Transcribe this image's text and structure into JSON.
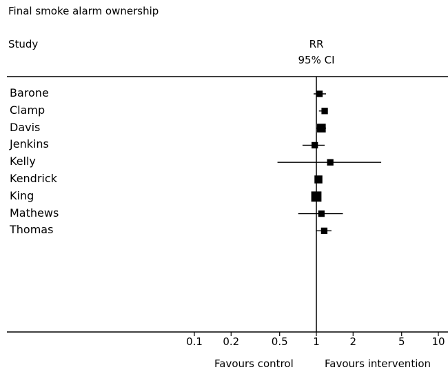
{
  "chart_data": {
    "type": "forest",
    "title": "Final smoke alarm ownership",
    "column_headers": {
      "study": "Study",
      "effect": "RR",
      "ci": "95% CI"
    },
    "x_scale": "log",
    "x_ticks": [
      0.1,
      0.2,
      0.5,
      1,
      2,
      5,
      10
    ],
    "x_tick_labels": [
      "0.1",
      "0.2",
      "0.5",
      "1",
      "2",
      "5",
      "10"
    ],
    "xlim": [
      0.1,
      10
    ],
    "reference_line": 1,
    "favours_left": "Favours control",
    "favours_right": "Favours intervention",
    "studies": [
      {
        "name": "Barone",
        "rr": 1.06,
        "lower": 0.95,
        "upper": 1.2,
        "weight": 3
      },
      {
        "name": "Clamp",
        "rr": 1.17,
        "lower": 1.05,
        "upper": 1.22,
        "weight": 3
      },
      {
        "name": "Davis",
        "rr": 1.1,
        "lower": 1.0,
        "upper": 1.2,
        "weight": 6
      },
      {
        "name": "Jenkins",
        "rr": 0.97,
        "lower": 0.77,
        "upper": 1.17,
        "weight": 3
      },
      {
        "name": "Kelly",
        "rr": 1.3,
        "lower": 0.48,
        "upper": 3.4,
        "weight": 3
      },
      {
        "name": "Kendrick",
        "rr": 1.04,
        "lower": 1.0,
        "upper": 1.08,
        "weight": 5
      },
      {
        "name": "King",
        "rr": 1.0,
        "lower": 0.97,
        "upper": 1.03,
        "weight": 8
      },
      {
        "name": "Mathews",
        "rr": 1.1,
        "lower": 0.71,
        "upper": 1.65,
        "weight": 3
      },
      {
        "name": "Thomas",
        "rr": 1.16,
        "lower": 0.99,
        "upper": 1.33,
        "weight": 3
      }
    ]
  }
}
